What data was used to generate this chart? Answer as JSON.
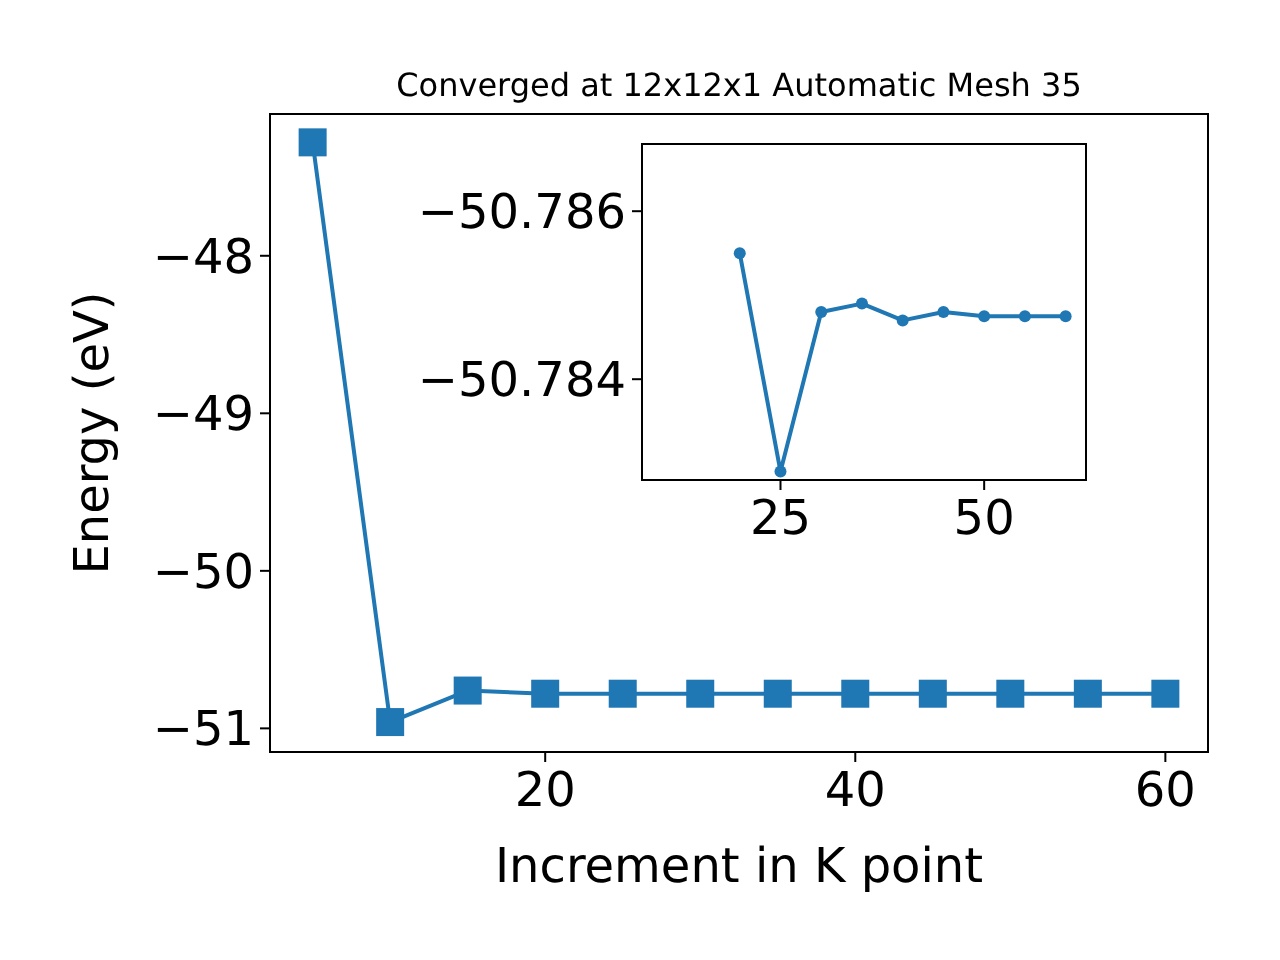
{
  "chart_data": [
    {
      "type": "line",
      "title": "Converged at 12x12x1 Automatic Mesh 35",
      "xlabel": "Increment in K point",
      "ylabel": "Energy (eV)",
      "marker": "square",
      "xlim": [
        2.25,
        62.75
      ],
      "ylim": [
        -51.15,
        -47.1
      ],
      "xticks": [
        20,
        40,
        60
      ],
      "yticks": [
        {
          "value": -48,
          "label": "−48"
        },
        {
          "value": -49,
          "label": "−49"
        },
        {
          "value": -50,
          "label": "−50"
        },
        {
          "value": -51,
          "label": "−51"
        }
      ],
      "series": [
        {
          "color": "#1f77b4",
          "x": [
            5,
            10,
            15,
            20,
            25,
            30,
            35,
            40,
            45,
            50,
            55,
            60
          ],
          "values": [
            -47.28,
            -50.96,
            -50.76,
            -50.78,
            -50.78,
            -50.78,
            -50.78,
            -50.78,
            -50.78,
            -50.78,
            -50.78,
            -50.78
          ]
        }
      ]
    },
    {
      "type": "line",
      "marker": "circle",
      "xlim": [
        8,
        62.5
      ],
      "ylim": [
        -50.7828,
        -50.7868
      ],
      "xticks": [
        25,
        50
      ],
      "yticks": [
        {
          "value": -50.786,
          "label": "−50.786"
        },
        {
          "value": -50.784,
          "label": "−50.784"
        }
      ],
      "series": [
        {
          "color": "#1f77b4",
          "x": [
            20,
            25,
            30,
            35,
            40,
            45,
            50,
            55,
            60
          ],
          "values": [
            -50.7855,
            -50.7829,
            -50.7848,
            -50.7849,
            -50.7847,
            -50.7848,
            -50.78475,
            -50.78475,
            -50.78475
          ]
        }
      ]
    }
  ]
}
